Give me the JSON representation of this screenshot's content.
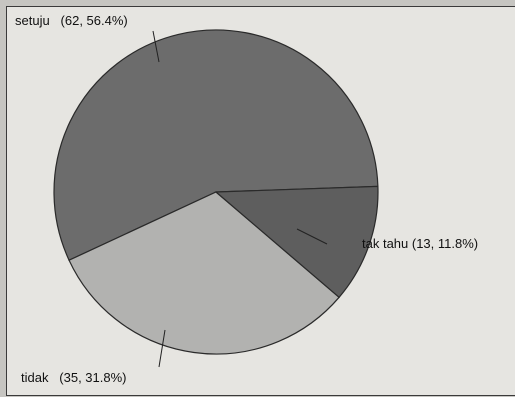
{
  "chart_data": {
    "type": "pie",
    "title": "",
    "slices": [
      {
        "label": "setuju",
        "value": 62,
        "percent": 56.4,
        "display": "setuju   (62, 56.4%)",
        "color": "#6c6c6c"
      },
      {
        "label": "tak tahu",
        "value": 13,
        "percent": 11.8,
        "display": "tak tahu (13, 11.8%)",
        "color": "#5e5e5e"
      },
      {
        "label": "tidak",
        "value": 35,
        "percent": 31.8,
        "display": "tidak   (35, 31.8%)",
        "color": "#b2b2b0"
      }
    ],
    "legend": "none"
  }
}
